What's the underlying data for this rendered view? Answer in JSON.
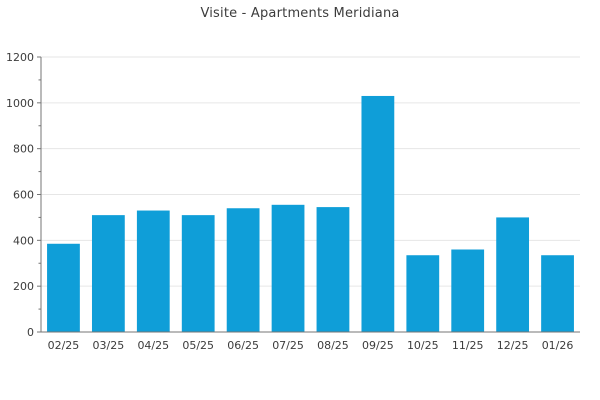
{
  "chart_data": {
    "type": "bar",
    "title": "Visite - Apartments Meridiana",
    "categories": [
      "02/25",
      "03/25",
      "04/25",
      "05/25",
      "06/25",
      "07/25",
      "08/25",
      "09/25",
      "10/25",
      "11/25",
      "12/25",
      "01/26"
    ],
    "values": [
      385,
      510,
      530,
      510,
      540,
      555,
      545,
      1030,
      335,
      360,
      500,
      335
    ],
    "xlabel": "",
    "ylabel": "",
    "ylim": [
      0,
      1200
    ],
    "ytick_step": 200,
    "yminor_step": 100,
    "grid": "horizontal",
    "legend": "none",
    "colors": {
      "bar": "#0f9ed8",
      "grid": "#e6e6e6",
      "axis": "#757575",
      "tick": "#757575",
      "label_text": "#3c3c3c",
      "title_text": "#3c3c3c",
      "background": "#ffffff"
    }
  }
}
